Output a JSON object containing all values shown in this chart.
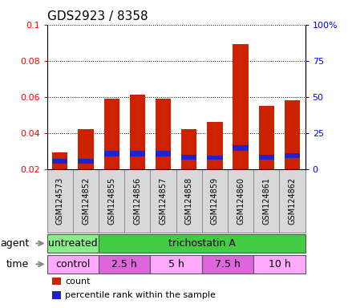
{
  "title": "GDS2923 / 8358",
  "samples": [
    "GSM124573",
    "GSM124852",
    "GSM124855",
    "GSM124856",
    "GSM124857",
    "GSM124858",
    "GSM124859",
    "GSM124860",
    "GSM124861",
    "GSM124862"
  ],
  "count_values": [
    0.029,
    0.042,
    0.059,
    0.061,
    0.059,
    0.042,
    0.046,
    0.089,
    0.055,
    0.058
  ],
  "base_values": [
    0.02,
    0.02,
    0.02,
    0.02,
    0.02,
    0.02,
    0.02,
    0.02,
    0.02,
    0.02
  ],
  "percentile_values": [
    0.0025,
    0.0025,
    0.0028,
    0.0028,
    0.0028,
    0.0027,
    0.0025,
    0.0032,
    0.0027,
    0.0027
  ],
  "percentile_bottom": [
    0.023,
    0.023,
    0.027,
    0.027,
    0.027,
    0.025,
    0.025,
    0.03,
    0.025,
    0.026
  ],
  "ylim": [
    0.02,
    0.1
  ],
  "yticks_left": [
    0.02,
    0.04,
    0.06,
    0.08,
    0.1
  ],
  "yticks_right": [
    0,
    25,
    50,
    75,
    100
  ],
  "bar_color": "#cc2200",
  "percentile_color": "#2222cc",
  "bar_width": 0.6,
  "agent_labels": [
    {
      "text": "untreated",
      "start": 0,
      "end": 2,
      "color": "#88ee88"
    },
    {
      "text": "trichostatin A",
      "start": 2,
      "end": 10,
      "color": "#44cc44"
    }
  ],
  "time_labels": [
    {
      "text": "control",
      "start": 0,
      "end": 2,
      "color": "#ffaaff"
    },
    {
      "text": "2.5 h",
      "start": 2,
      "end": 4,
      "color": "#dd66dd"
    },
    {
      "text": "5 h",
      "start": 4,
      "end": 6,
      "color": "#ffaaff"
    },
    {
      "text": "7.5 h",
      "start": 6,
      "end": 8,
      "color": "#dd66dd"
    },
    {
      "text": "10 h",
      "start": 8,
      "end": 10,
      "color": "#ffaaff"
    }
  ],
  "legend_items": [
    {
      "label": "count",
      "color": "#cc2200"
    },
    {
      "label": "percentile rank within the sample",
      "color": "#2222cc"
    }
  ],
  "xcell_color": "#d8d8d8",
  "xcell_border": "#888888",
  "background_color": "#ffffff",
  "title_fontsize": 11,
  "tick_fontsize": 8,
  "label_fontsize": 9,
  "sample_fontsize": 7
}
